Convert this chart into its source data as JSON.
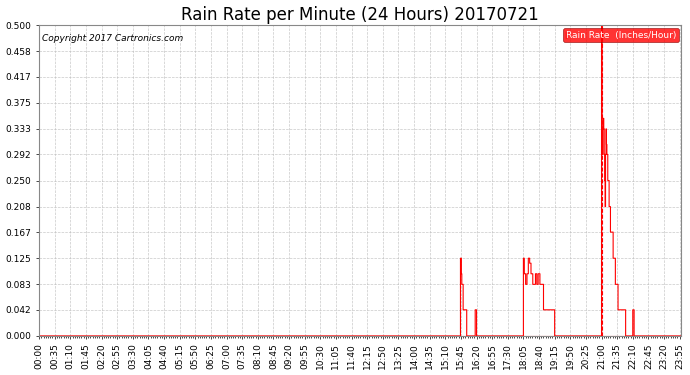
{
  "title": "Rain Rate per Minute (24 Hours) 20170721",
  "copyright_text": "Copyright 2017 Cartronics.com",
  "legend_label": "Rain Rate  (Inches/Hour)",
  "line_color": "#ff0000",
  "background_color": "#ffffff",
  "plot_bg_color": "#ffffff",
  "grid_color": "#bbbbbb",
  "ylim": [
    0.0,
    0.5
  ],
  "yticks": [
    0.0,
    0.042,
    0.083,
    0.125,
    0.167,
    0.208,
    0.25,
    0.292,
    0.333,
    0.375,
    0.417,
    0.458,
    0.5
  ],
  "title_fontsize": 12,
  "tick_fontsize": 6.5,
  "label_fontsize": 8,
  "x_label_interval": 35
}
